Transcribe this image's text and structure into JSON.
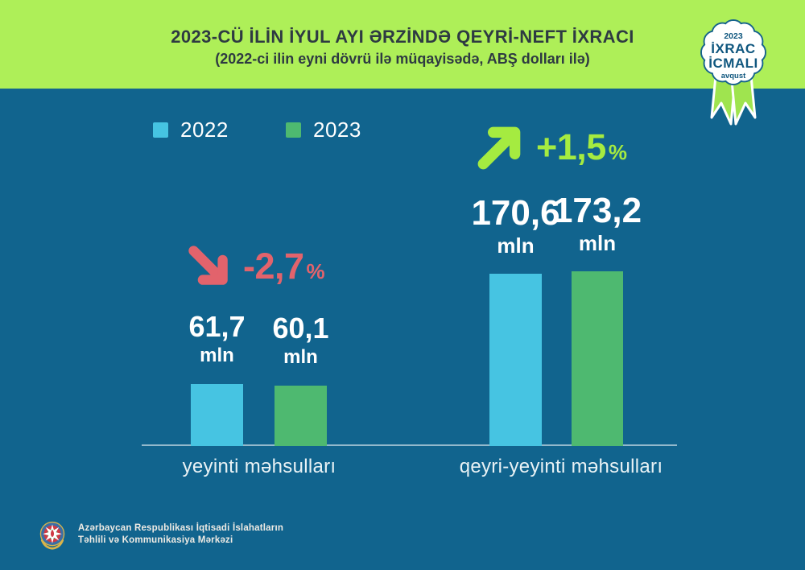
{
  "header": {
    "title": "2023-CÜ İLİN İYUL AYI ƏRZİNDƏ QEYRİ-NEFT İXRACI",
    "subtitle": "(2022-ci ilin eyni dövrü ilə müqayisədə, ABŞ dolları ilə)"
  },
  "badge": {
    "year": "2023",
    "line1": "İXRAC",
    "line2": "İCMALI",
    "month": "avqust"
  },
  "chart_data": {
    "type": "bar",
    "title": "2023-cü ilin iyul ayı ərzində qeyri-neft ixracı",
    "unit_label": "mln",
    "categories": [
      "yeyinti məhsulları",
      "qeyri-yeyinti məhsulları"
    ],
    "series": [
      {
        "name": "2022",
        "color": "#46C4E2",
        "values": [
          61.7,
          170.6
        ],
        "display": [
          "61,7",
          "170,6"
        ]
      },
      {
        "name": "2023",
        "color": "#4EB970",
        "values": [
          60.1,
          173.2
        ],
        "display": [
          "60,1",
          "173,2"
        ]
      }
    ],
    "changes": [
      {
        "label": "-2,7",
        "sign": "%",
        "direction": "down",
        "color": "#E2636C"
      },
      {
        "label": "+1,5",
        "sign": "%",
        "direction": "up",
        "color": "#A5EB40"
      }
    ],
    "ylim": [
      0,
      200
    ],
    "grid": "off",
    "legend_position": "top-left"
  },
  "footer": {
    "org_line1": "Azərbaycan Respublikası İqtisadi İslahatların",
    "org_line2": "Təhlili və Kommunikasiya Mərkəzi"
  },
  "colors": {
    "background": "#11648E",
    "header_band": "#AEEF58",
    "title_text": "#2E3A42",
    "bar_2022": "#46C4E2",
    "bar_2023": "#4EB970",
    "accent_up": "#A5EB40",
    "accent_down": "#E2636C",
    "badge_text": "#10577F",
    "ribbon": "#9FE44F"
  }
}
